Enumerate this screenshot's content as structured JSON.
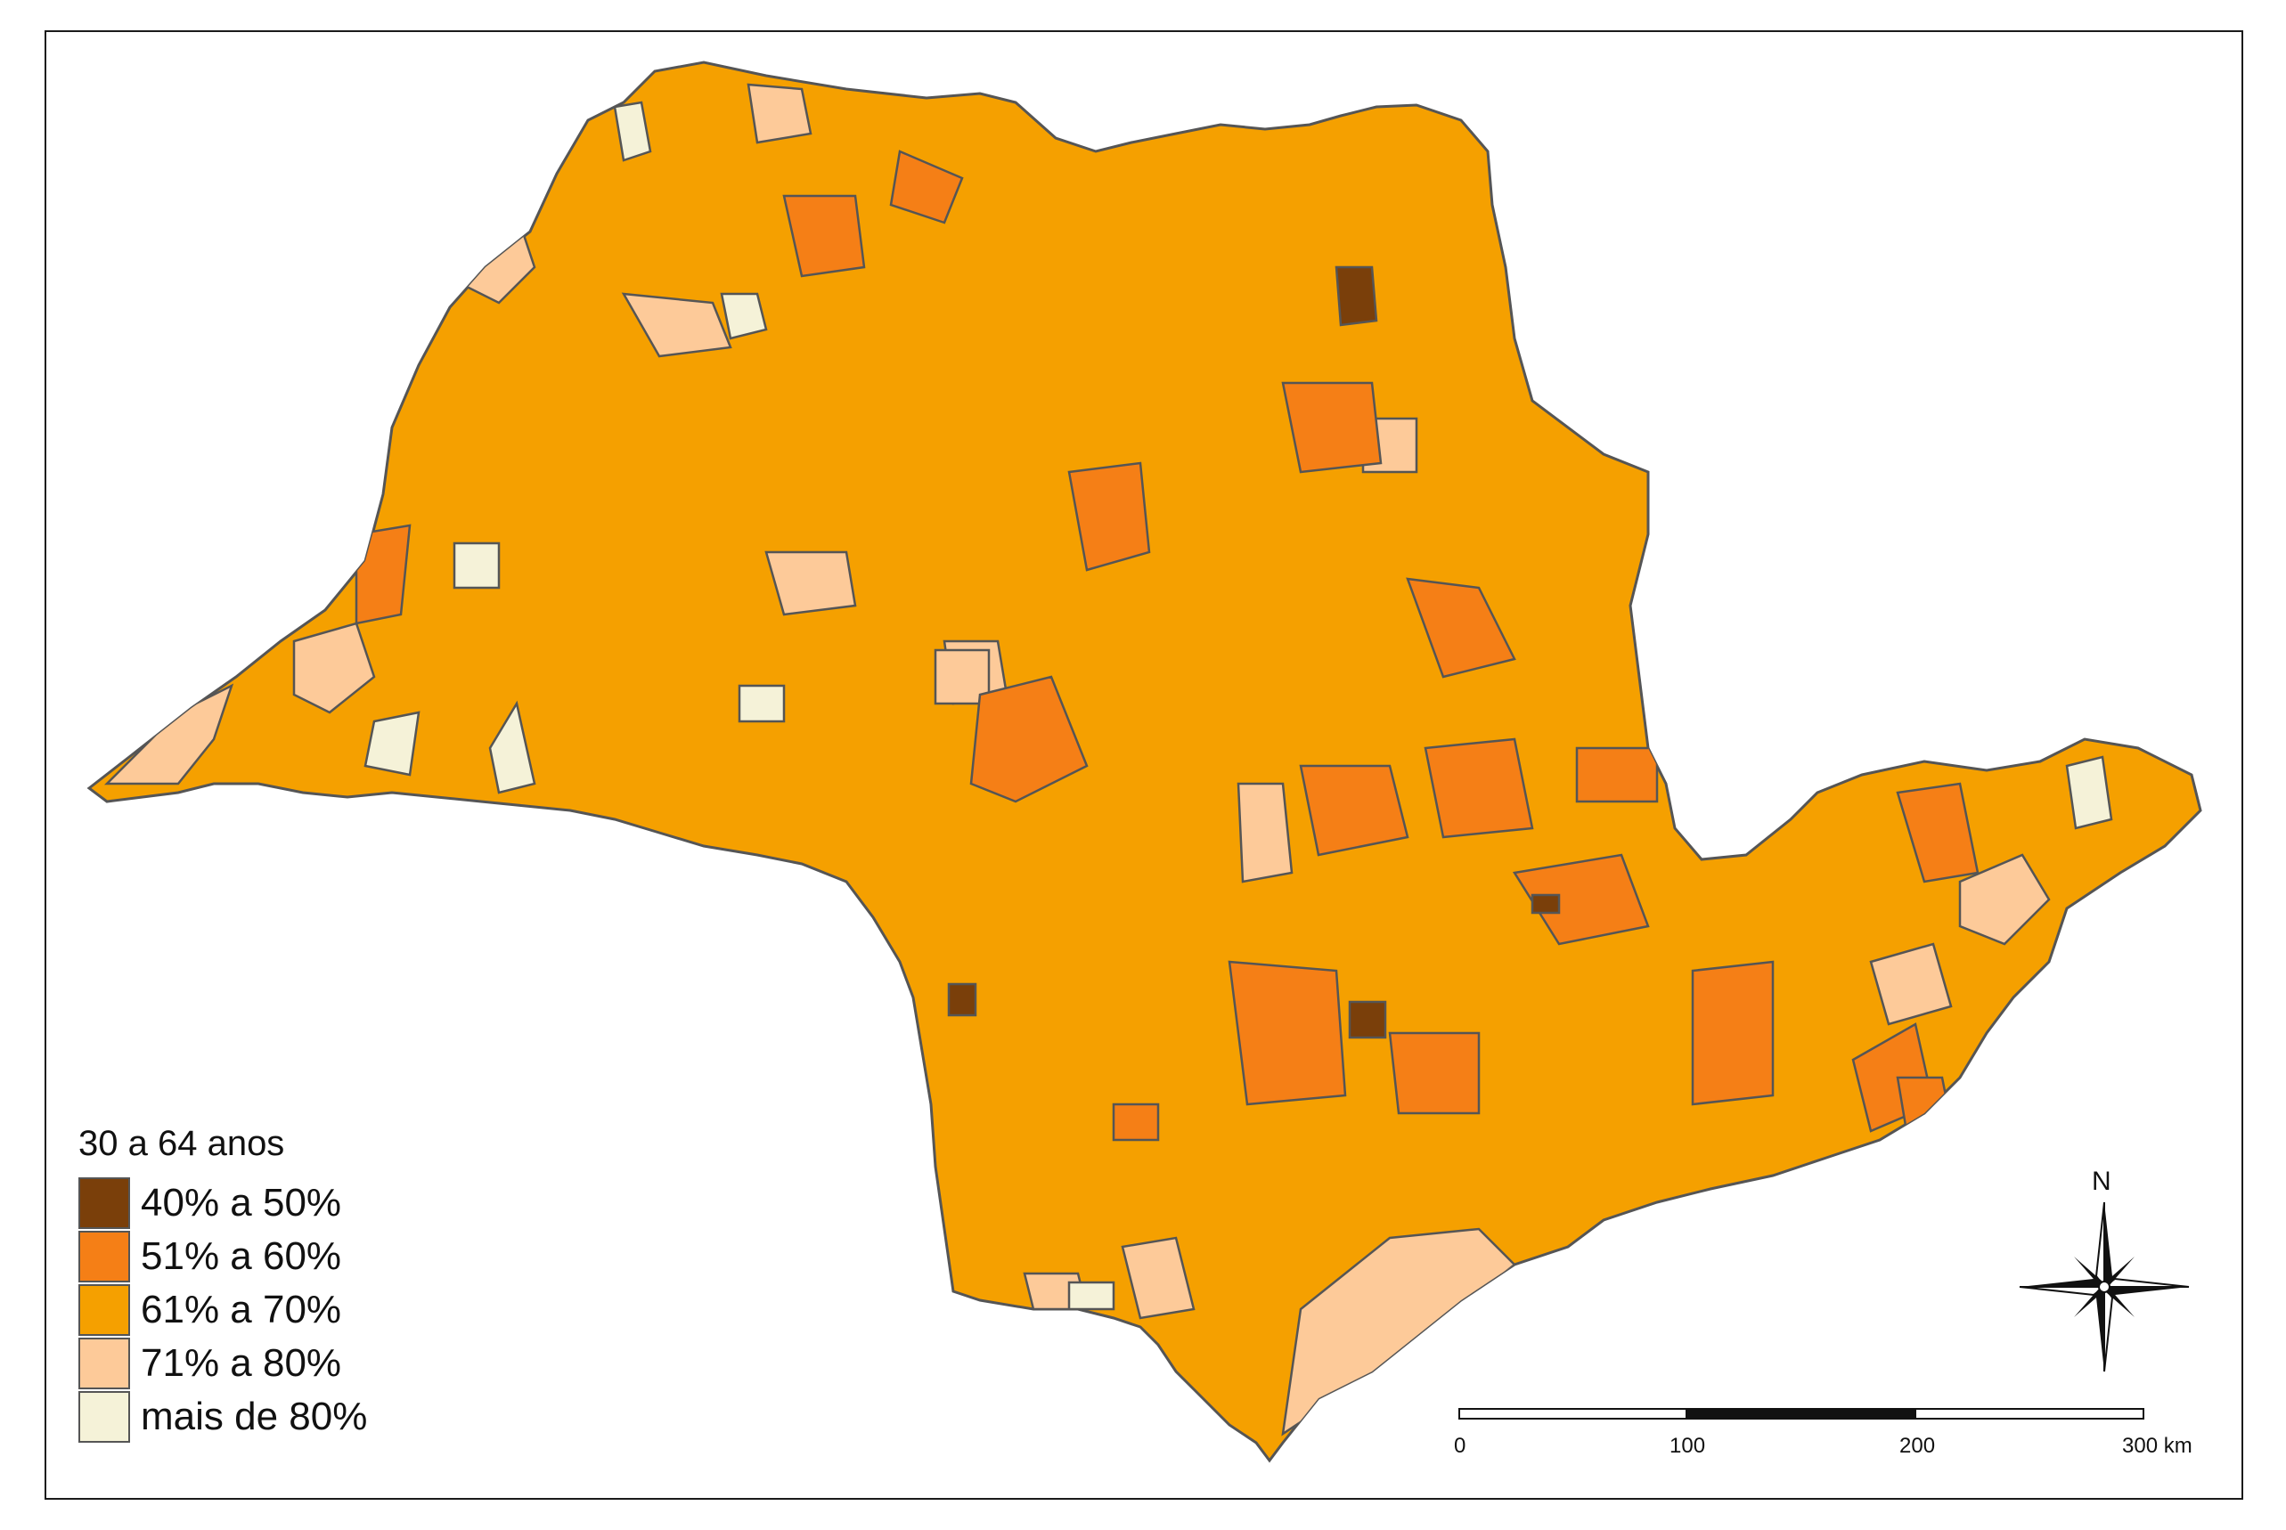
{
  "legend": {
    "title": "30 a 64 anos",
    "items": [
      {
        "label": "40% a 50%",
        "color": "#7a3f0a"
      },
      {
        "label": "51% a 60%",
        "color": "#f57f16"
      },
      {
        "label": "61% a 70%",
        "color": "#f5a000"
      },
      {
        "label": "71% a 80%",
        "color": "#fdca99"
      },
      {
        "label": "mais de 80%",
        "color": "#f5f2d8"
      }
    ]
  },
  "scalebar": {
    "labels": [
      "0",
      "100",
      "200",
      "300 km"
    ]
  },
  "north_arrow": {
    "label": "N",
    "icon": "compass-rose-icon"
  },
  "colors": {
    "border": "#555555",
    "base_fill": "#f5a000"
  }
}
